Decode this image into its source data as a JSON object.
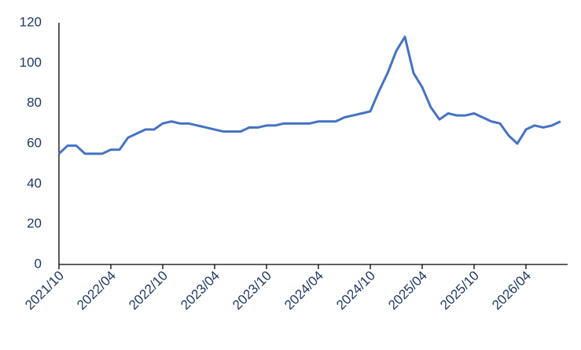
{
  "chart_data": {
    "type": "line",
    "color": "#4472c4",
    "categories": [
      "2021/10",
      null,
      null,
      null,
      null,
      null,
      "2022/04",
      null,
      null,
      null,
      null,
      null,
      "2022/10",
      null,
      null,
      null,
      null,
      null,
      "2023/04",
      null,
      null,
      null,
      null,
      null,
      "2023/10",
      null,
      null,
      null,
      null,
      null,
      "2024/04",
      null,
      null,
      null,
      null,
      null,
      "2024/10",
      null,
      null,
      null,
      null,
      null,
      "2025/04",
      null,
      null,
      null,
      null,
      null,
      "2025/10",
      null,
      null,
      null,
      null,
      null,
      "2026/04",
      null,
      null,
      null,
      null
    ],
    "values": [
      55,
      59,
      59,
      55,
      55,
      55,
      57,
      57,
      63,
      65,
      67,
      67,
      70,
      71,
      70,
      70,
      69,
      68,
      67,
      66,
      66,
      66,
      68,
      68,
      69,
      69,
      70,
      70,
      70,
      70,
      71,
      71,
      71,
      73,
      74,
      75,
      76,
      86,
      95,
      106,
      113,
      95,
      88,
      78,
      72,
      75,
      74,
      74,
      75,
      73,
      71,
      70,
      64,
      60,
      67,
      69,
      68,
      69,
      71
    ],
    "ylim": [
      0,
      120
    ],
    "yticks": [
      0,
      20,
      40,
      60,
      80,
      100,
      120
    ],
    "grid": false
  }
}
